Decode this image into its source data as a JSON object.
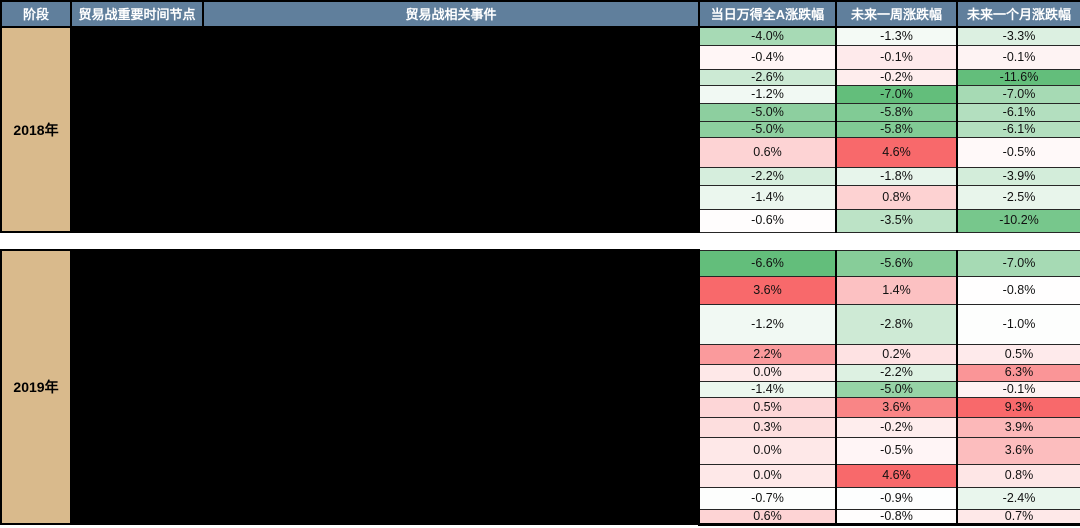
{
  "colors": {
    "header_bg": "#607f9c",
    "header_text": "#ffffff",
    "stage_bg": "#d9ba8c",
    "redacted_bg": "#000000",
    "grid_border": "#000000",
    "scale_negative_extreme": "#63be7b",
    "scale_midpoint": "#ffffff",
    "scale_positive_extreme": "#f8696b"
  },
  "chart_data": {
    "type": "table",
    "subtype": "heatmap",
    "columns": [
      "阶段",
      "贸易战重要时间节点",
      "贸易战相关事件",
      "当日万得全A涨跌幅",
      "未来一周涨跌幅",
      "未来一个月涨跌幅"
    ],
    "value_columns": [
      "当日万得全A涨跌幅",
      "未来一周涨跌幅",
      "未来一个月涨跌幅"
    ],
    "heatmap_rule": "per-column 3-color scale: most negative = green #63be7b, median = white, most positive = red #f8696b",
    "redacted_note": "时间节点 and 相关事件 columns are blacked out in the source image",
    "sections": [
      {
        "stage": "2018年",
        "timeline_redacted": true,
        "events_redacted": true,
        "rows": [
          {
            "cells": [
              {
                "v": "-4.0%",
                "bg": "#a7dab5"
              },
              {
                "v": "-1.3%",
                "bg": "#f4faf5"
              },
              {
                "v": "-3.3%",
                "bg": "#dcf0e1"
              }
            ]
          },
          {
            "cells": [
              {
                "v": "-0.4%",
                "bg": "#fff6f6"
              },
              {
                "v": "-0.1%",
                "bg": "#feeaeb"
              },
              {
                "v": "-0.1%",
                "bg": "#fef3f3"
              }
            ]
          },
          {
            "cells": [
              {
                "v": "-2.6%",
                "bg": "#ccead4"
              },
              {
                "v": "-0.2%",
                "bg": "#feeded"
              },
              {
                "v": "-11.6%",
                "bg": "#63be7b"
              }
            ]
          },
          {
            "cells": [
              {
                "v": "-1.2%",
                "bg": "#f1f9f3"
              },
              {
                "v": "-7.0%",
                "bg": "#63be7b"
              },
              {
                "v": "-7.0%",
                "bg": "#a6dab4"
              }
            ]
          },
          {
            "cells": [
              {
                "v": "-5.0%",
                "bg": "#8dcf9f"
              },
              {
                "v": "-5.8%",
                "bg": "#81cb95"
              },
              {
                "v": "-6.1%",
                "bg": "#b3dfbf"
              }
            ]
          },
          {
            "cells": [
              {
                "v": "-5.0%",
                "bg": "#8dcf9f"
              },
              {
                "v": "-5.8%",
                "bg": "#81cb95"
              },
              {
                "v": "-6.1%",
                "bg": "#b3dfbf"
              }
            ]
          },
          {
            "cells": [
              {
                "v": "0.6%",
                "bg": "#fdd3d4"
              },
              {
                "v": "4.6%",
                "bg": "#f8696b"
              },
              {
                "v": "-0.5%",
                "bg": "#fff9f9"
              }
            ]
          },
          {
            "cells": [
              {
                "v": "-2.2%",
                "bg": "#d6eedd"
              },
              {
                "v": "-1.8%",
                "bg": "#e7f5eb"
              },
              {
                "v": "-3.9%",
                "bg": "#d3edda"
              }
            ]
          },
          {
            "cells": [
              {
                "v": "-1.4%",
                "bg": "#ebf7ee"
              },
              {
                "v": "0.8%",
                "bg": "#fdd2d2"
              },
              {
                "v": "-2.5%",
                "bg": "#e8f5eb"
              }
            ]
          },
          {
            "cells": [
              {
                "v": "-0.6%",
                "bg": "#fffdfd"
              },
              {
                "v": "-3.5%",
                "bg": "#bce3c6"
              },
              {
                "v": "-10.2%",
                "bg": "#77c78c"
              }
            ]
          }
        ]
      },
      {
        "stage": "2019年",
        "timeline_redacted": true,
        "events_redacted": true,
        "rows": [
          {
            "cells": [
              {
                "v": "-6.6%",
                "bg": "#63be7b"
              },
              {
                "v": "-5.6%",
                "bg": "#87cd99"
              },
              {
                "v": "-7.0%",
                "bg": "#a6dab4"
              }
            ]
          },
          {
            "cells": [
              {
                "v": "3.6%",
                "bg": "#f8696b"
              },
              {
                "v": "1.4%",
                "bg": "#fcc1c2"
              },
              {
                "v": "-0.8%",
                "bg": "#fffefe"
              }
            ]
          },
          {
            "cells": [
              {
                "v": "-1.2%",
                "bg": "#f1f9f3"
              },
              {
                "v": "-2.8%",
                "bg": "#ceead5"
              },
              {
                "v": "-1.0%",
                "bg": "#fdfefd"
              }
            ]
          },
          {
            "cells": [
              {
                "v": "2.2%",
                "bg": "#fa9a9c"
              },
              {
                "v": "0.2%",
                "bg": "#fee2e3"
              },
              {
                "v": "0.5%",
                "bg": "#feeaeb"
              }
            ]
          },
          {
            "cells": [
              {
                "v": "0.0%",
                "bg": "#fee8e8"
              },
              {
                "v": "-2.2%",
                "bg": "#ddf1e2"
              },
              {
                "v": "6.3%",
                "bg": "#fa9597"
              }
            ]
          },
          {
            "cells": [
              {
                "v": "-1.4%",
                "bg": "#ebf7ee"
              },
              {
                "v": "-5.0%",
                "bg": "#96d3a6"
              },
              {
                "v": "-0.1%",
                "bg": "#fef3f3"
              }
            ]
          },
          {
            "cells": [
              {
                "v": "0.5%",
                "bg": "#fdd6d7"
              },
              {
                "v": "3.6%",
                "bg": "#f98586"
              },
              {
                "v": "9.3%",
                "bg": "#f8696b"
              }
            ]
          },
          {
            "cells": [
              {
                "v": "0.3%",
                "bg": "#fddede"
              },
              {
                "v": "-0.2%",
                "bg": "#feeded"
              },
              {
                "v": "3.9%",
                "bg": "#fcb8b9"
              }
            ]
          },
          {
            "cells": [
              {
                "v": "0.0%",
                "bg": "#fee8e8"
              },
              {
                "v": "-0.5%",
                "bg": "#fff5f6"
              },
              {
                "v": "3.6%",
                "bg": "#fcbdbe"
              }
            ]
          },
          {
            "cells": [
              {
                "v": "0.0%",
                "bg": "#fee8e8"
              },
              {
                "v": "4.6%",
                "bg": "#f8696b"
              },
              {
                "v": "0.8%",
                "bg": "#fee6e6"
              }
            ]
          },
          {
            "cells": [
              {
                "v": "-0.7%",
                "bg": "#fdfefd"
              },
              {
                "v": "-0.9%",
                "bg": "#fdfefe"
              },
              {
                "v": "-2.4%",
                "bg": "#e9f6ed"
              }
            ]
          },
          {
            "cells": [
              {
                "v": "0.6%",
                "bg": "#fdd3d4"
              },
              {
                "v": "-0.8%",
                "bg": "#fffdfd"
              },
              {
                "v": "0.7%",
                "bg": "#fee8e8"
              }
            ]
          }
        ]
      }
    ]
  }
}
